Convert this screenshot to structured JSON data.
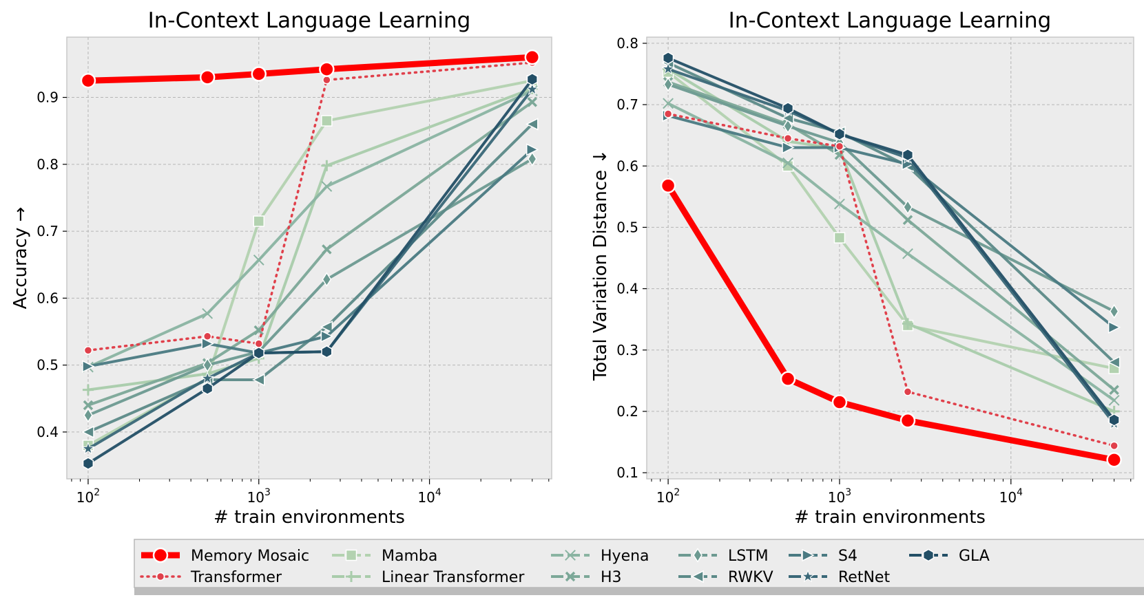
{
  "chart_data": [
    {
      "type": "line",
      "title": "In-Context Language Learning",
      "xlabel": "# train environments",
      "ylabel": "Accuracy →",
      "xscale": "log",
      "x": [
        100,
        500,
        1000,
        2500,
        40000
      ],
      "xlim": [
        75,
        52000
      ],
      "ylim": [
        0.33,
        0.99
      ],
      "yticks": [
        0.4,
        0.5,
        0.6,
        0.7,
        0.8,
        0.9
      ],
      "ytick_labels": [
        "0.4",
        "0.5",
        "0.6",
        "0.7",
        "0.8",
        "0.9"
      ],
      "xticks": [
        100,
        1000,
        10000
      ],
      "xtick_labels": [
        {
          "base": "10",
          "exp": "2"
        },
        {
          "base": "10",
          "exp": "3"
        },
        {
          "base": "10",
          "exp": "4"
        }
      ],
      "grid": true,
      "series": [
        {
          "name": "Mamba",
          "values": [
            0.38,
            0.48,
            0.715,
            0.865,
            0.925
          ]
        },
        {
          "name": "Linear Transformer",
          "values": [
            0.463,
            0.487,
            0.51,
            0.798,
            0.913
          ]
        },
        {
          "name": "Hyena",
          "values": [
            0.497,
            0.577,
            0.657,
            0.767,
            0.91
          ]
        },
        {
          "name": "H3",
          "values": [
            0.44,
            0.503,
            0.552,
            0.673,
            0.893
          ]
        },
        {
          "name": "LSTM",
          "values": [
            0.425,
            0.5,
            0.52,
            0.628,
            0.808
          ]
        },
        {
          "name": "RWKV",
          "values": [
            0.4,
            0.478,
            0.478,
            0.557,
            0.86
          ]
        },
        {
          "name": "S4",
          "values": [
            0.498,
            0.532,
            0.518,
            0.543,
            0.822
          ]
        },
        {
          "name": "RetNet",
          "values": [
            0.375,
            0.48,
            0.518,
            0.52,
            0.912
          ]
        },
        {
          "name": "GLA",
          "values": [
            0.353,
            0.465,
            0.518,
            0.52,
            0.927
          ]
        },
        {
          "name": "Transformer",
          "values": [
            0.522,
            0.543,
            0.532,
            0.926,
            0.952
          ]
        },
        {
          "name": "Memory Mosaic",
          "values": [
            0.925,
            0.93,
            0.935,
            0.942,
            0.96
          ]
        }
      ]
    },
    {
      "type": "line",
      "title": "In-Context Language Learning",
      "xlabel": "# train environments",
      "ylabel": "Total Variation Distance ↓",
      "xscale": "log",
      "x": [
        100,
        500,
        1000,
        2500,
        40000
      ],
      "xlim": [
        75,
        52000
      ],
      "ylim": [
        0.09,
        0.81
      ],
      "yticks": [
        0.1,
        0.2,
        0.3,
        0.4,
        0.5,
        0.6,
        0.7,
        0.8
      ],
      "ytick_labels": [
        "0.1",
        "0.2",
        "0.3",
        "0.4",
        "0.5",
        "0.6",
        "0.7",
        "0.8"
      ],
      "xticks": [
        100,
        1000,
        10000
      ],
      "xtick_labels": [
        {
          "base": "10",
          "exp": "2"
        },
        {
          "base": "10",
          "exp": "3"
        },
        {
          "base": "10",
          "exp": "4"
        }
      ],
      "grid": true,
      "series": [
        {
          "name": "Mamba",
          "values": [
            0.753,
            0.6,
            0.483,
            0.34,
            0.27
          ]
        },
        {
          "name": "Linear Transformer",
          "values": [
            0.758,
            0.64,
            0.628,
            0.343,
            0.2
          ]
        },
        {
          "name": "Hyena",
          "values": [
            0.702,
            0.605,
            0.538,
            0.457,
            0.218
          ]
        },
        {
          "name": "H3",
          "values": [
            0.737,
            0.668,
            0.618,
            0.512,
            0.235
          ]
        },
        {
          "name": "LSTM",
          "values": [
            0.733,
            0.665,
            0.638,
            0.533,
            0.363
          ]
        },
        {
          "name": "RWKV",
          "values": [
            0.768,
            0.678,
            0.655,
            0.6,
            0.28
          ]
        },
        {
          "name": "S4",
          "values": [
            0.682,
            0.63,
            0.63,
            0.603,
            0.337
          ]
        },
        {
          "name": "RetNet",
          "values": [
            0.758,
            0.69,
            0.652,
            0.613,
            0.18
          ]
        },
        {
          "name": "GLA",
          "values": [
            0.776,
            0.694,
            0.652,
            0.618,
            0.186
          ]
        },
        {
          "name": "Transformer",
          "values": [
            0.685,
            0.645,
            0.632,
            0.232,
            0.144
          ]
        },
        {
          "name": "Memory Mosaic",
          "values": [
            0.568,
            0.253,
            0.215,
            0.185,
            0.121
          ]
        }
      ]
    }
  ],
  "legend": {
    "location": "bottom-center",
    "columns": 6,
    "entries": [
      {
        "series": "Memory Mosaic",
        "label": "Memory Mosaic"
      },
      {
        "series": "Transformer",
        "label": "Transformer"
      },
      {
        "series": "Mamba",
        "label": "Mamba"
      },
      {
        "series": "Linear Transformer",
        "label": "Linear Transformer"
      },
      {
        "series": "Hyena",
        "label": "Hyena"
      },
      {
        "series": "H3",
        "label": "H3"
      },
      {
        "series": "LSTM",
        "label": "LSTM"
      },
      {
        "series": "RWKV",
        "label": "RWKV"
      },
      {
        "series": "S4",
        "label": "S4"
      },
      {
        "series": "RetNet",
        "label": "RetNet"
      },
      {
        "series": "GLA",
        "label": "GLA"
      }
    ]
  },
  "styles": {
    "Memory Mosaic": {
      "color": "#ff0000",
      "marker": "circle",
      "dash": "solid",
      "width": "thick"
    },
    "Transformer": {
      "color": "#e0404b",
      "marker": "circle-small",
      "dash": "dotted",
      "width": "normal"
    },
    "Mamba": {
      "color": "#b3d2b0",
      "marker": "square",
      "dash": "solid",
      "width": "normal"
    },
    "Linear Transformer": {
      "color": "#a9ccab",
      "marker": "plus",
      "dash": "solid",
      "width": "normal"
    },
    "Hyena": {
      "color": "#8ab4a2",
      "marker": "x",
      "dash": "solid",
      "width": "normal"
    },
    "H3": {
      "color": "#7ca898",
      "marker": "x-thick",
      "dash": "solid",
      "width": "normal"
    },
    "LSTM": {
      "color": "#6d9a91",
      "marker": "diamond",
      "dash": "solid",
      "width": "normal"
    },
    "RWKV": {
      "color": "#5c8a88",
      "marker": "triangle-left",
      "dash": "solid",
      "width": "normal"
    },
    "S4": {
      "color": "#4a7a82",
      "marker": "triangle-right",
      "dash": "solid",
      "width": "normal"
    },
    "RetNet": {
      "color": "#3a6878",
      "marker": "star",
      "dash": "solid",
      "width": "normal"
    },
    "GLA": {
      "color": "#234f66",
      "marker": "hexagon",
      "dash": "solid",
      "width": "normal"
    }
  }
}
